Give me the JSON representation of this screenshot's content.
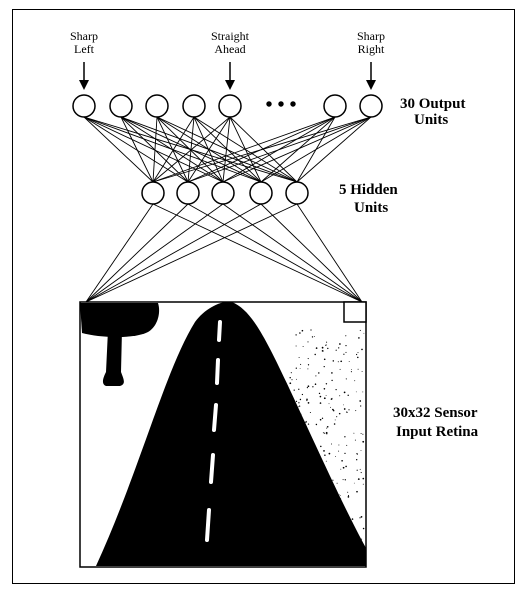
{
  "output_labels": {
    "left": {
      "line1": "Sharp",
      "line2": "Left"
    },
    "center": {
      "line1": "Straight",
      "line2": "Ahead"
    },
    "right": {
      "line1": "Sharp",
      "line2": "Right"
    }
  },
  "output_units": {
    "line1": "30 Output",
    "line2": "Units"
  },
  "hidden_units": {
    "line1": "5 Hidden",
    "line2": "Units"
  },
  "retina": {
    "line1": "30x32 Sensor",
    "line2": "Input Retina"
  },
  "ellipsis": "• • •",
  "colors": {
    "ink": "#000000",
    "paper": "#ffffff"
  }
}
